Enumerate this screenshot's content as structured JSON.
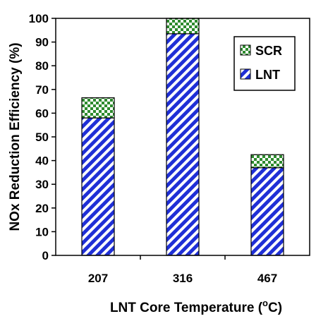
{
  "chart_data": {
    "type": "bar",
    "stacked": true,
    "categories": [
      "207",
      "316",
      "467"
    ],
    "series": [
      {
        "name": "LNT",
        "values": [
          58,
          93.5,
          37
        ],
        "pattern": "diagonal-hatch",
        "color": "#1f2fd6"
      },
      {
        "name": "SCR",
        "values": [
          8.5,
          6.5,
          5.5
        ],
        "pattern": "checker",
        "color": "#2e8b2e"
      }
    ],
    "xlabel_main": "LNT Core Temperature (",
    "xlabel_sup": "o",
    "xlabel_end": "C)",
    "ylabel": "NOx Reduction Efficiency (%)",
    "ylim": [
      0,
      100
    ],
    "yticks": [
      "0",
      "10",
      "20",
      "30",
      "40",
      "50",
      "60",
      "70",
      "80",
      "90",
      "100"
    ],
    "legend_order": [
      "SCR",
      "LNT"
    ],
    "legend_position": "top-right",
    "grid": false
  }
}
